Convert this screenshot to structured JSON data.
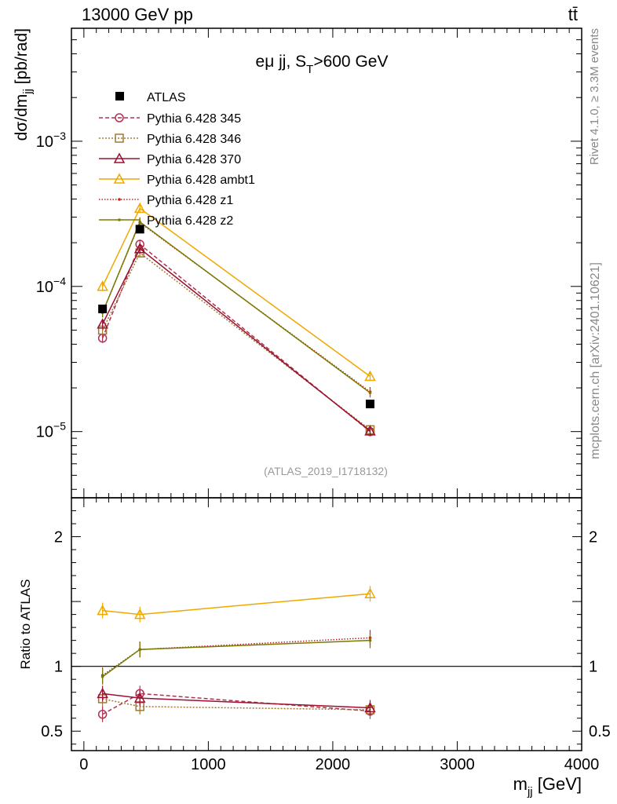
{
  "header": {
    "energy_label": "13000 GeV pp",
    "process_label": "tt̄"
  },
  "side": {
    "rivet_label": "Rivet 4.1.0, ≥ 3.3M events",
    "site_label": "mcplots.cern.ch [arXiv:2401.10621]"
  },
  "chart_data": [
    {
      "type": "line",
      "panel": "main",
      "title_main": "eμ jj, S",
      "title_sub": "T",
      "title_rest": ">600 GeV",
      "ylabel_main": "dσ/dm",
      "ylabel_sub": "jj",
      "ylabel_rest": " [pb/rad]",
      "yscale": "log",
      "ylim": [
        3.5e-06,
        0.006
      ],
      "xlim": [
        -100,
        4000
      ],
      "yticks": [
        {
          "value": 1e-05,
          "base": "10",
          "exp": "−5"
        },
        {
          "value": 0.0001,
          "base": "10",
          "exp": "−4"
        },
        {
          "value": 0.001,
          "base": "10",
          "exp": "−3"
        }
      ],
      "analysis_label": "(ATLAS_2019_I1718132)",
      "x": [
        150,
        450,
        2300
      ],
      "data": {
        "name": "ATLAS",
        "values": [
          7e-05,
          0.000248,
          1.55e-05
        ]
      },
      "series": [
        {
          "name": "Pythia 6.428 345",
          "color": "#b03050",
          "dash": "5,3",
          "marker": "circle",
          "values": [
            4.4e-05,
            0.000195,
            1e-05
          ]
        },
        {
          "name": "Pythia 6.428 346",
          "color": "#a07830",
          "dash": "2,2",
          "marker": "square",
          "values": [
            5e-05,
            0.00017,
            1.03e-05
          ]
        },
        {
          "name": "Pythia 6.428 370",
          "color": "#9b1030",
          "dash": "",
          "marker": "triangle",
          "values": [
            5.5e-05,
            0.000182,
            1.01e-05
          ]
        },
        {
          "name": "Pythia 6.428 ambt1",
          "color": "#f0a800",
          "dash": "",
          "marker": "triangle",
          "values": [
            0.0001,
            0.000345,
            2.4e-05
          ]
        },
        {
          "name": "Pythia 6.428 z1",
          "color": "#c02020",
          "dash": "1.5,2",
          "marker": "dot",
          "values": [
            6.6e-05,
            0.000275,
            1.88e-05
          ]
        },
        {
          "name": "Pythia 6.428 z2",
          "color": "#7a7a00",
          "dash": "",
          "marker": "dot",
          "values": [
            6.6e-05,
            0.000278,
            1.85e-05
          ]
        }
      ]
    },
    {
      "type": "line",
      "panel": "ratio",
      "ylabel": "Ratio to ATLAS",
      "xlabel_main": "m",
      "xlabel_sub": "jj",
      "xlabel_rest": " [GeV]",
      "ylim": [
        0.35,
        2.3
      ],
      "xticks": [
        0,
        1000,
        2000,
        3000,
        4000
      ],
      "yticks": [
        0.5,
        1,
        2
      ],
      "ytick_labels": [
        "0.5",
        "1",
        "2"
      ],
      "x": [
        150,
        450,
        2300
      ],
      "series": [
        {
          "name": "Pythia 6.428 345",
          "values": [
            0.63,
            0.79,
            0.655
          ]
        },
        {
          "name": "Pythia 6.428 346",
          "values": [
            0.75,
            0.69,
            0.665
          ]
        },
        {
          "name": "Pythia 6.428 370",
          "values": [
            0.79,
            0.755,
            0.68
          ]
        },
        {
          "name": "Pythia 6.428 ambt1",
          "values": [
            1.43,
            1.4,
            1.56
          ]
        },
        {
          "name": "Pythia 6.428 z1",
          "values": [
            0.93,
            1.13,
            1.22
          ]
        },
        {
          "name": "Pythia 6.428 z2",
          "values": [
            0.92,
            1.13,
            1.2
          ]
        }
      ]
    }
  ]
}
